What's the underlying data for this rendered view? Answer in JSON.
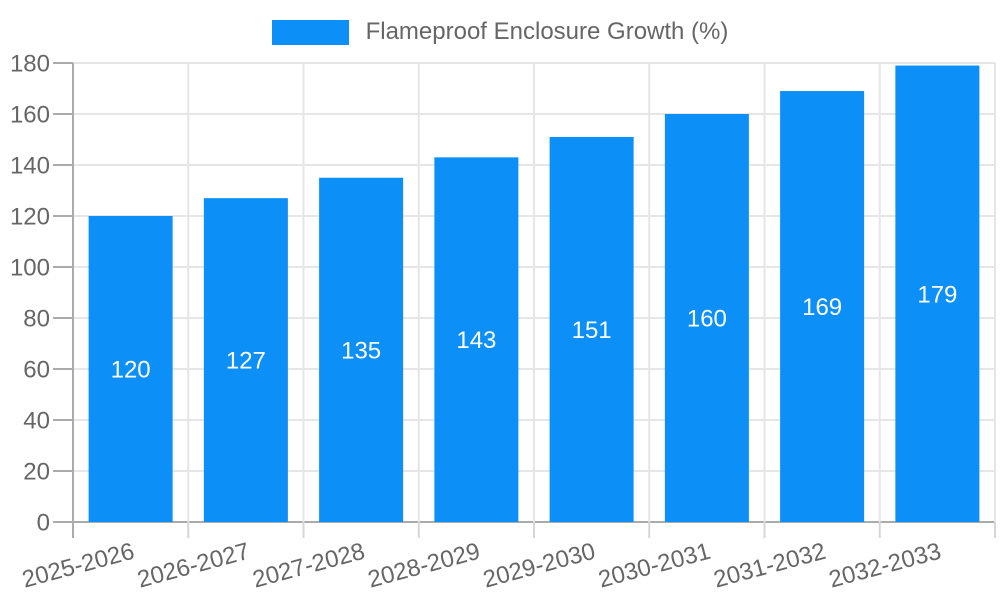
{
  "chart_data": {
    "type": "bar",
    "title": "",
    "legend_label": "Flameproof Enclosure Growth (%)",
    "legend_position": "top",
    "categories": [
      "2025-2026",
      "2026-2027",
      "2027-2028",
      "2028-2029",
      "2029-2030",
      "2030-2031",
      "2031-2032",
      "2032-2033"
    ],
    "values": [
      120,
      127,
      135,
      143,
      151,
      160,
      169,
      179
    ],
    "xlabel": "",
    "ylabel": "",
    "ylim": [
      0,
      180
    ],
    "ytick_step": 20,
    "grid": true,
    "x_label_rotation": -15,
    "colors": {
      "bar": "#0D8FF8",
      "bar_value_label": "#FFFFFF",
      "gridline": "#E6E6E6",
      "axis_line": "#ABABAB",
      "minor_tick": "#D6D6D6",
      "tick_text": "#666666"
    }
  }
}
